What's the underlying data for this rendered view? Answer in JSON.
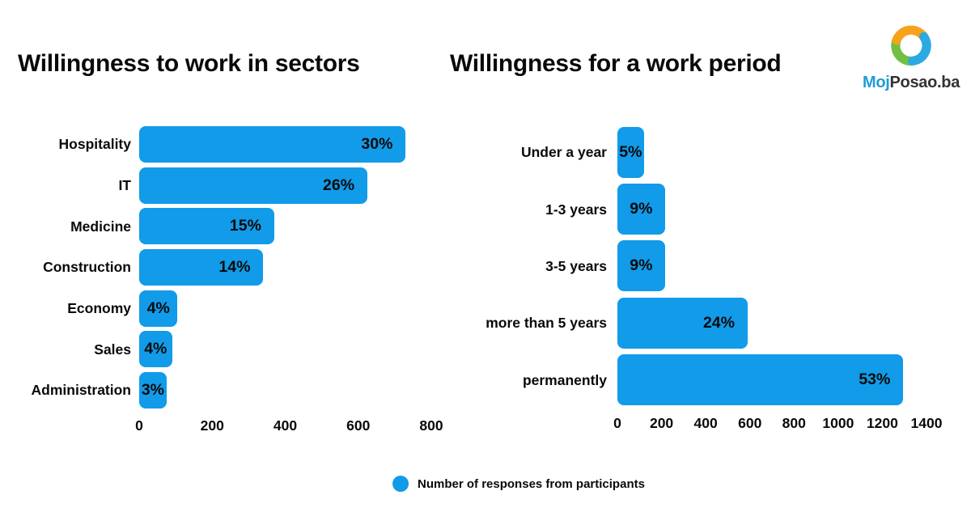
{
  "header": {
    "left_title": "Willingness to work in sectors",
    "right_title": "Willingness for a work period",
    "logo": {
      "moj": "Moj",
      "posao": "Posao.ba"
    }
  },
  "legend": {
    "label": "Number of responses from participants"
  },
  "colors": {
    "bar": "#119be9",
    "text": "#0a0a0a",
    "logo_moj": "#1f9cd8",
    "logo_posao": "#333333",
    "logo_orange": "#f7a21b",
    "logo_blue": "#2ba9e0",
    "logo_green": "#72bf44",
    "background": "#ffffff"
  },
  "chart_data": [
    {
      "type": "bar",
      "orientation": "horizontal",
      "title": "Willingness to work in sectors",
      "categories": [
        "Hospitality",
        "IT",
        "Medicine",
        "Construction",
        "Economy",
        "Sales",
        "Administration"
      ],
      "values": [
        730,
        625,
        370,
        340,
        105,
        90,
        75
      ],
      "labels": [
        "30%",
        "26%",
        "15%",
        "14%",
        "4%",
        "4%",
        "3%"
      ],
      "xlabel": "Number of responses from participants",
      "xlim": [
        0,
        800
      ],
      "xticks": [
        0,
        200,
        400,
        600,
        800
      ],
      "grid": false,
      "legend_position": "bottom-center"
    },
    {
      "type": "bar",
      "orientation": "horizontal",
      "title": "Willingness for a work period",
      "categories": [
        "Under a year",
        "1-3 years",
        "3-5 years",
        "more than 5 years",
        "permanently"
      ],
      "values": [
        120,
        215,
        215,
        590,
        1295
      ],
      "labels": [
        "5%",
        "9%",
        "9%",
        "24%",
        "53%"
      ],
      "xlabel": "Number of responses from participants",
      "xlim": [
        0,
        1400
      ],
      "xticks": [
        0,
        200,
        400,
        600,
        800,
        1000,
        1200,
        1400
      ],
      "grid": false,
      "legend_position": "bottom-center"
    }
  ]
}
